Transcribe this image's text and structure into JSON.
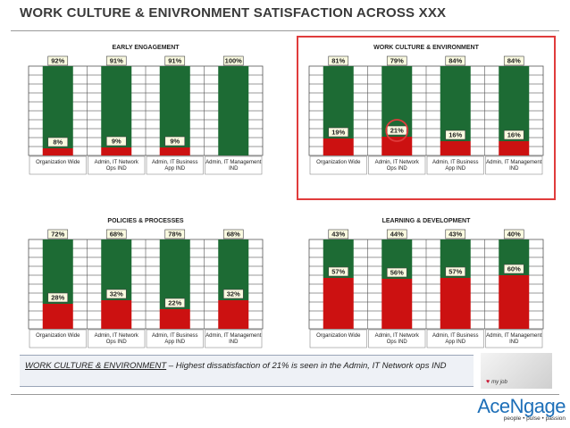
{
  "page": {
    "title": "WORK CULTURE & ENIVRONMENT SATISFACTION ACROSS XXX",
    "note_label": "WORK CULTURE & ENVIRONMENT",
    "note_text": " – Highest dissatisfaction of 21% is seen in the Admin, IT Network ops IND",
    "photo_caption": "my job",
    "logo_name": "AceNgage",
    "logo_tagline": "people • pulse • passion",
    "colors": {
      "positive": "#1d6b34",
      "negative": "#cc1111",
      "highlight": "#e03c3c",
      "label_bg": "#fafae0"
    }
  },
  "chart_data": [
    {
      "type": "bar",
      "title": "EARLY ENGAGEMENT",
      "categories": [
        "Organization Wide",
        "Admin, IT Network Ops IND",
        "Admin, IT Business App IND",
        "Admin, IT Management IND"
      ],
      "stacked": true,
      "ylim": [
        0,
        100
      ],
      "series": [
        {
          "values": [
            8,
            9,
            9,
            0
          ],
          "color": "#cc1111"
        },
        {
          "values": [
            92,
            91,
            91,
            100
          ],
          "color": "#1d6b34"
        }
      ],
      "data_labels": {
        "top": [
          "92%",
          "91%",
          "91%",
          "100%"
        ],
        "bottom": [
          "8%",
          "9%",
          "9%",
          ""
        ]
      },
      "grid": true,
      "highlight_panel": false
    },
    {
      "type": "bar",
      "title": "WORK CULTURE & ENVIRONMENT",
      "categories": [
        "Organization Wide",
        "Admin, IT Network Ops IND",
        "Admin, IT Business App IND",
        "Admin, IT Management IND"
      ],
      "stacked": true,
      "ylim": [
        0,
        100
      ],
      "series": [
        {
          "values": [
            19,
            21,
            16,
            16
          ],
          "color": "#cc1111"
        },
        {
          "values": [
            81,
            79,
            84,
            84
          ],
          "color": "#1d6b34"
        }
      ],
      "data_labels": {
        "top": [
          "81%",
          "79%",
          "84%",
          "84%"
        ],
        "bottom": [
          "19%",
          "21%",
          "16%",
          "16%"
        ]
      },
      "grid": true,
      "highlight_panel": true,
      "circled_index": 1
    },
    {
      "type": "bar",
      "title": "POLICIES & PROCESSES",
      "categories": [
        "Organization Wide",
        "Admin, IT Network Ops IND",
        "Admin, IT Business App IND",
        "Admin, IT Management IND"
      ],
      "stacked": true,
      "ylim": [
        0,
        100
      ],
      "series": [
        {
          "values": [
            28,
            32,
            22,
            32
          ],
          "color": "#cc1111"
        },
        {
          "values": [
            72,
            68,
            78,
            68
          ],
          "color": "#1d6b34"
        }
      ],
      "data_labels": {
        "top": [
          "72%",
          "68%",
          "78%",
          "68%"
        ],
        "bottom": [
          "28%",
          "32%",
          "22%",
          "32%"
        ]
      },
      "grid": true,
      "highlight_panel": false
    },
    {
      "type": "bar",
      "title": "LEARNING & DEVELOPMENT",
      "categories": [
        "Organization Wide",
        "Admin, IT Network Ops IND",
        "Admin, IT Business App IND",
        "Admin, IT Management IND"
      ],
      "stacked": true,
      "ylim": [
        0,
        100
      ],
      "series": [
        {
          "values": [
            57,
            56,
            57,
            60
          ],
          "color": "#cc1111"
        },
        {
          "values": [
            43,
            44,
            43,
            40
          ],
          "color": "#1d6b34"
        }
      ],
      "data_labels": {
        "top": [
          "43%",
          "44%",
          "43%",
          "40%"
        ],
        "bottom": [
          "57%",
          "56%",
          "57%",
          "60%"
        ]
      },
      "grid": true,
      "highlight_panel": false
    }
  ]
}
